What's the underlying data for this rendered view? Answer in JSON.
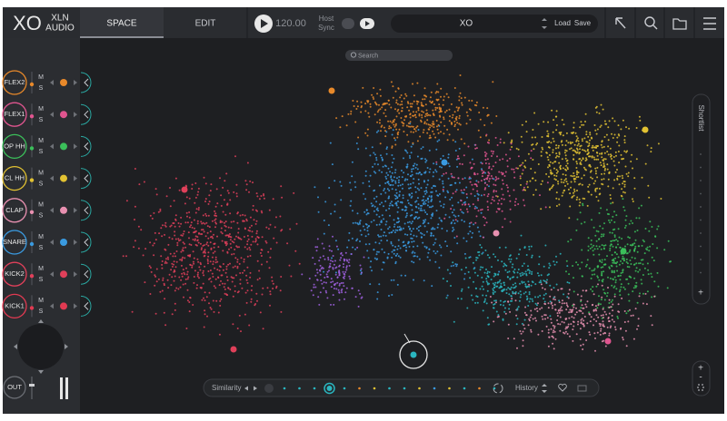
{
  "header": {
    "logo": "XO",
    "brand": [
      "XLN",
      "AUDIO"
    ],
    "tabs": [
      "SPACE",
      "EDIT"
    ],
    "tempo": "120.00",
    "host_sync": [
      "Host",
      "Sync"
    ],
    "preset": "XO",
    "load": "Load",
    "save": "Save"
  },
  "search": "Search",
  "shortlist": "Shortlist",
  "channels": [
    {
      "name": "FLEX2",
      "color": "#e8892a"
    },
    {
      "name": "FLEX1",
      "color": "#e0558f"
    },
    {
      "name": "OP HH",
      "color": "#3bbf5a"
    },
    {
      "name": "CL HH",
      "color": "#e2c232"
    },
    {
      "name": "CLAP",
      "color": "#e890b0"
    },
    {
      "name": "SNARE",
      "color": "#3a9ae0"
    },
    {
      "name": "KICK2",
      "color": "#e0405a"
    },
    {
      "name": "KICK1",
      "color": "#e23a52"
    }
  ],
  "mute": "M",
  "solo": "S",
  "output": "OUT",
  "footer": {
    "similarity": "Similarity",
    "history": "History"
  }
}
